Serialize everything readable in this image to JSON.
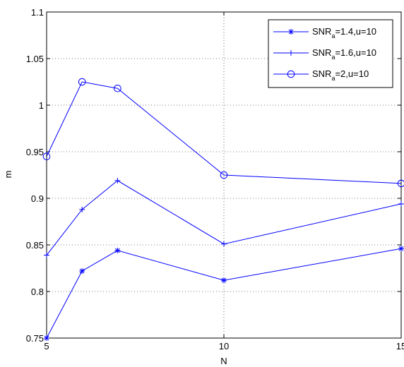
{
  "chart_data": {
    "type": "line",
    "xlabel": "N",
    "ylabel": "m",
    "xlim": [
      5,
      15
    ],
    "ylim": [
      0.75,
      1.1
    ],
    "xticks": [
      "5",
      "10",
      "15"
    ],
    "yticks": [
      "0.75",
      "0.8",
      "0.85",
      "0.9",
      "0.95",
      "1",
      "1.05",
      "1.1"
    ],
    "grid": true,
    "legend_position": "top-right",
    "color": "#0000ff",
    "series": [
      {
        "label_main": "SNR",
        "label_sub": "a",
        "label_rest": "=1.4,u=10",
        "marker": "asterisk",
        "x": [
          5,
          6,
          7,
          10,
          15
        ],
        "y": [
          0.75,
          0.822,
          0.844,
          0.812,
          0.846
        ]
      },
      {
        "label_main": "SNR",
        "label_sub": "a",
        "label_rest": "=1.6,u=10",
        "marker": "plus",
        "x": [
          5,
          6,
          7,
          10,
          15
        ],
        "y": [
          0.839,
          0.888,
          0.919,
          0.851,
          0.894
        ]
      },
      {
        "label_main": "SNR",
        "label_sub": "a",
        "label_rest": "=2,u=10",
        "marker": "circle",
        "x": [
          5,
          6,
          7,
          10,
          15
        ],
        "y": [
          0.945,
          1.025,
          1.018,
          0.925,
          0.916
        ]
      }
    ]
  }
}
